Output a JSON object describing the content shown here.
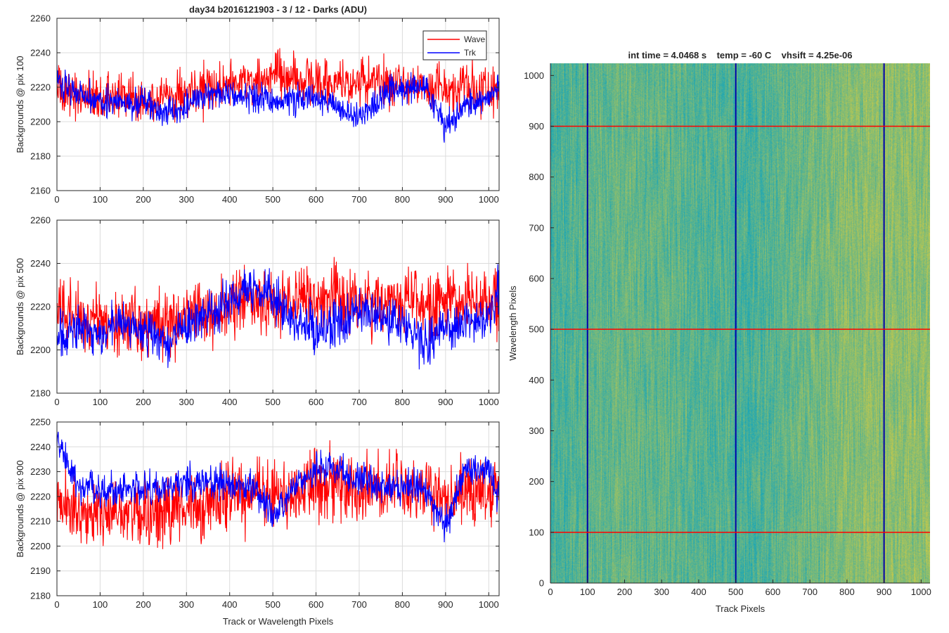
{
  "figure_title": "day34 b2016121903 - 3 / 12 - Darks (ADU)",
  "right_title": "int time = 4.0468 s    temp = -60 C    vhsift = 4.25e-06",
  "colors": {
    "wave": "#ff0000",
    "trk": "#0000ff",
    "axis": "#262626",
    "grid": "#dcdcdc"
  },
  "chart_data": [
    {
      "type": "line",
      "ylabel": "Backgrounds @ pix 100",
      "xlabel": "",
      "xlim": [
        0,
        1024
      ],
      "ylim": [
        2160,
        2260
      ],
      "xticks": [
        0,
        100,
        200,
        300,
        400,
        500,
        600,
        700,
        800,
        900,
        1000
      ],
      "yticks": [
        2160,
        2180,
        2200,
        2220,
        2240,
        2260
      ],
      "grid": true,
      "legend": "top-right",
      "x": [
        0,
        50,
        100,
        150,
        200,
        250,
        300,
        350,
        400,
        450,
        500,
        550,
        600,
        650,
        700,
        750,
        800,
        850,
        900,
        950,
        1000,
        1024
      ],
      "series": [
        {
          "name": "Wave",
          "color": "#ff0000",
          "noise": 8,
          "values": [
            2218,
            2216,
            2215,
            2214,
            2213,
            2216,
            2217,
            2219,
            2221,
            2225,
            2226,
            2224,
            2223,
            2222,
            2224,
            2223,
            2222,
            2221,
            2221,
            2220,
            2219,
            2218
          ]
        },
        {
          "name": "Trk",
          "color": "#0000ff",
          "noise": 5,
          "values": [
            2224,
            2217,
            2213,
            2210,
            2211,
            2204,
            2209,
            2216,
            2217,
            2214,
            2212,
            2213,
            2214,
            2209,
            2203,
            2215,
            2219,
            2220,
            2196,
            2210,
            2215,
            2222
          ]
        }
      ]
    },
    {
      "type": "line",
      "ylabel": "Backgrounds @ pix 500",
      "xlabel": "",
      "xlim": [
        0,
        1024
      ],
      "ylim": [
        2180,
        2260
      ],
      "xticks": [
        0,
        100,
        200,
        300,
        400,
        500,
        600,
        700,
        800,
        900,
        1000
      ],
      "yticks": [
        2180,
        2200,
        2220,
        2240,
        2260
      ],
      "grid": true,
      "x": [
        0,
        50,
        100,
        150,
        200,
        250,
        300,
        350,
        400,
        450,
        500,
        550,
        600,
        650,
        700,
        750,
        800,
        850,
        900,
        950,
        1000,
        1024
      ],
      "series": [
        {
          "name": "Wave",
          "color": "#ff0000",
          "noise": 9,
          "values": [
            2217,
            2216,
            2212,
            2213,
            2212,
            2213,
            2216,
            2218,
            2220,
            2222,
            2221,
            2222,
            2224,
            2224,
            2223,
            2222,
            2224,
            2223,
            2222,
            2223,
            2222,
            2222
          ]
        },
        {
          "name": "Trk",
          "color": "#0000ff",
          "noise": 6,
          "values": [
            2206,
            2210,
            2207,
            2213,
            2208,
            2203,
            2212,
            2216,
            2224,
            2228,
            2225,
            2213,
            2211,
            2212,
            2218,
            2214,
            2212,
            2203,
            2210,
            2212,
            2214,
            2230
          ]
        }
      ]
    },
    {
      "type": "line",
      "ylabel": "Backgrounds @ pix 900",
      "xlabel": "Track or Wavelength Pixels",
      "xlim": [
        0,
        1024
      ],
      "ylim": [
        2180,
        2250
      ],
      "xticks": [
        0,
        100,
        200,
        300,
        400,
        500,
        600,
        700,
        800,
        900,
        1000
      ],
      "yticks": [
        2180,
        2190,
        2200,
        2210,
        2220,
        2230,
        2240,
        2250
      ],
      "grid": true,
      "x": [
        0,
        50,
        100,
        150,
        200,
        250,
        300,
        350,
        400,
        450,
        500,
        550,
        600,
        650,
        700,
        750,
        800,
        850,
        900,
        950,
        1000,
        1024
      ],
      "series": [
        {
          "name": "Wave",
          "color": "#ff0000",
          "noise": 8,
          "values": [
            2217,
            2214,
            2213,
            2214,
            2212,
            2213,
            2215,
            2218,
            2220,
            2222,
            2221,
            2222,
            2225,
            2224,
            2222,
            2223,
            2223,
            2223,
            2222,
            2222,
            2223,
            2223
          ]
        },
        {
          "name": "Trk",
          "color": "#0000ff",
          "noise": 4,
          "values": [
            2242,
            2224,
            2222,
            2223,
            2223,
            2224,
            2225,
            2226,
            2225,
            2224,
            2212,
            2224,
            2232,
            2230,
            2226,
            2224,
            2224,
            2224,
            2207,
            2232,
            2230,
            2218
          ]
        }
      ]
    },
    {
      "type": "heatmap",
      "title": "int time = 4.0468 s    temp = -60 C    vhsift = 4.25e-06",
      "xlabel": "Track Pixels",
      "ylabel": "Wavelength Pixels",
      "xlim": [
        0,
        1024
      ],
      "ylim": [
        0,
        1024
      ],
      "xticks": [
        0,
        100,
        200,
        300,
        400,
        500,
        600,
        700,
        800,
        900,
        1000
      ],
      "yticks": [
        0,
        100,
        200,
        300,
        400,
        500,
        600,
        700,
        800,
        900,
        1000
      ],
      "colormap": "parula",
      "color_low": "#1aa6b7",
      "color_high": "#c5c94a",
      "vertical_markers": [
        100,
        500,
        900
      ],
      "vertical_marker_color": "#0000aa",
      "horizontal_markers": [
        100,
        500,
        900
      ],
      "horizontal_marker_color": "#ff0000"
    }
  ]
}
